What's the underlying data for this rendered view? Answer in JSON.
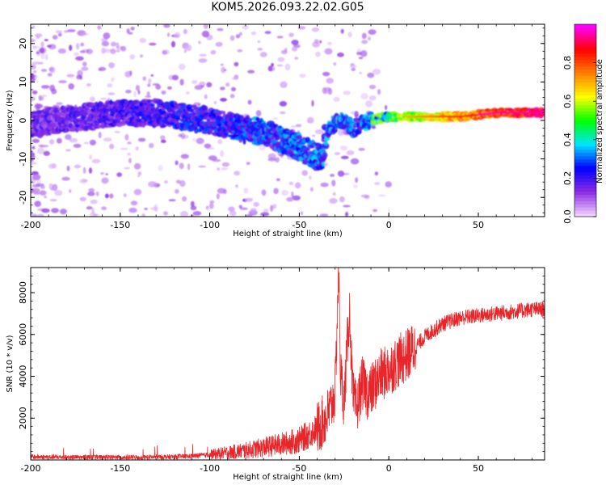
{
  "title": "KOM5.2026.093.22.02.G05",
  "colors": {
    "snr_line": "#e8262a",
    "spectro_base": "#7b2fe0",
    "frame": "#000000"
  },
  "chart_data": [
    {
      "type": "heatmap",
      "name": "spectrogram",
      "xlabel": "Height of straight line (km)",
      "ylabel": "Frequency (Hz)",
      "xlim": [
        -200,
        87
      ],
      "ylim": [
        -25,
        25
      ],
      "xticks": [
        -200,
        -150,
        -100,
        -50,
        0,
        50
      ],
      "xtick_labels": [
        "-200",
        "-150",
        "-100",
        "-50",
        "0",
        "50"
      ],
      "yticks": [
        -20,
        -10,
        0,
        10,
        20
      ],
      "ytick_labels": [
        "-20",
        "-10",
        "0",
        "10",
        "20"
      ],
      "ridge": {
        "x": [
          -200,
          -185,
          -170,
          -150,
          -130,
          -115,
          -100,
          -85,
          -70,
          -60,
          -50,
          -42,
          -37,
          -35,
          -30,
          -25,
          -20,
          -10,
          0,
          10,
          20,
          40,
          60,
          87
        ],
        "y": [
          -1,
          0,
          1,
          2,
          2,
          1,
          0,
          -2,
          -3,
          -5,
          -7,
          -9,
          -10,
          -3,
          -1,
          0,
          -2,
          0,
          1,
          1,
          1,
          1,
          2,
          2
        ]
      },
      "colorbar": {
        "label": "Normalized spectral amplitude",
        "range": [
          0,
          1
        ],
        "ticks": [
          0.0,
          0.2,
          0.4,
          0.6,
          0.8
        ],
        "tick_labels": [
          "0.0",
          "0.2",
          "0.4",
          "0.6",
          "0.8"
        ],
        "stops": [
          "#f0d0ff",
          "#8a2be2",
          "#0000ff",
          "#00e5ff",
          "#00ff00",
          "#ffff00",
          "#ff8000",
          "#ff0000",
          "#ff00ff"
        ]
      }
    },
    {
      "type": "line",
      "name": "snr",
      "xlabel": "Height of straight line (km)",
      "ylabel": "SNR (10 * v/v)",
      "xlim": [
        -200,
        87
      ],
      "ylim": [
        0,
        9200
      ],
      "xticks": [
        -200,
        -150,
        -100,
        -50,
        0,
        50
      ],
      "xtick_labels": [
        "-200",
        "-150",
        "-100",
        "-50",
        "0",
        "50"
      ],
      "yticks": [
        2000,
        4000,
        6000,
        8000
      ],
      "ytick_labels": [
        "2000",
        "4000",
        "6000",
        "8000"
      ],
      "series": [
        {
          "name": "SNR",
          "x": [
            -200,
            -180,
            -160,
            -140,
            -120,
            -110,
            -100,
            -90,
            -80,
            -70,
            -60,
            -50,
            -45,
            -40,
            -35,
            -32,
            -30,
            -28,
            -27,
            -25,
            -22,
            -20,
            -18,
            -15,
            -12,
            -10,
            -5,
            0,
            5,
            10,
            15,
            20,
            25,
            30,
            40,
            50,
            60,
            70,
            80,
            87
          ],
          "values": [
            150,
            130,
            120,
            130,
            150,
            180,
            250,
            350,
            450,
            600,
            750,
            950,
            1200,
            1500,
            2000,
            2600,
            3200,
            9200,
            4200,
            2800,
            7200,
            3000,
            2400,
            3700,
            3200,
            3300,
            4000,
            4300,
            4700,
            5000,
            5400,
            5900,
            6200,
            6500,
            6800,
            6900,
            7000,
            7100,
            7200,
            7200
          ]
        }
      ]
    }
  ]
}
